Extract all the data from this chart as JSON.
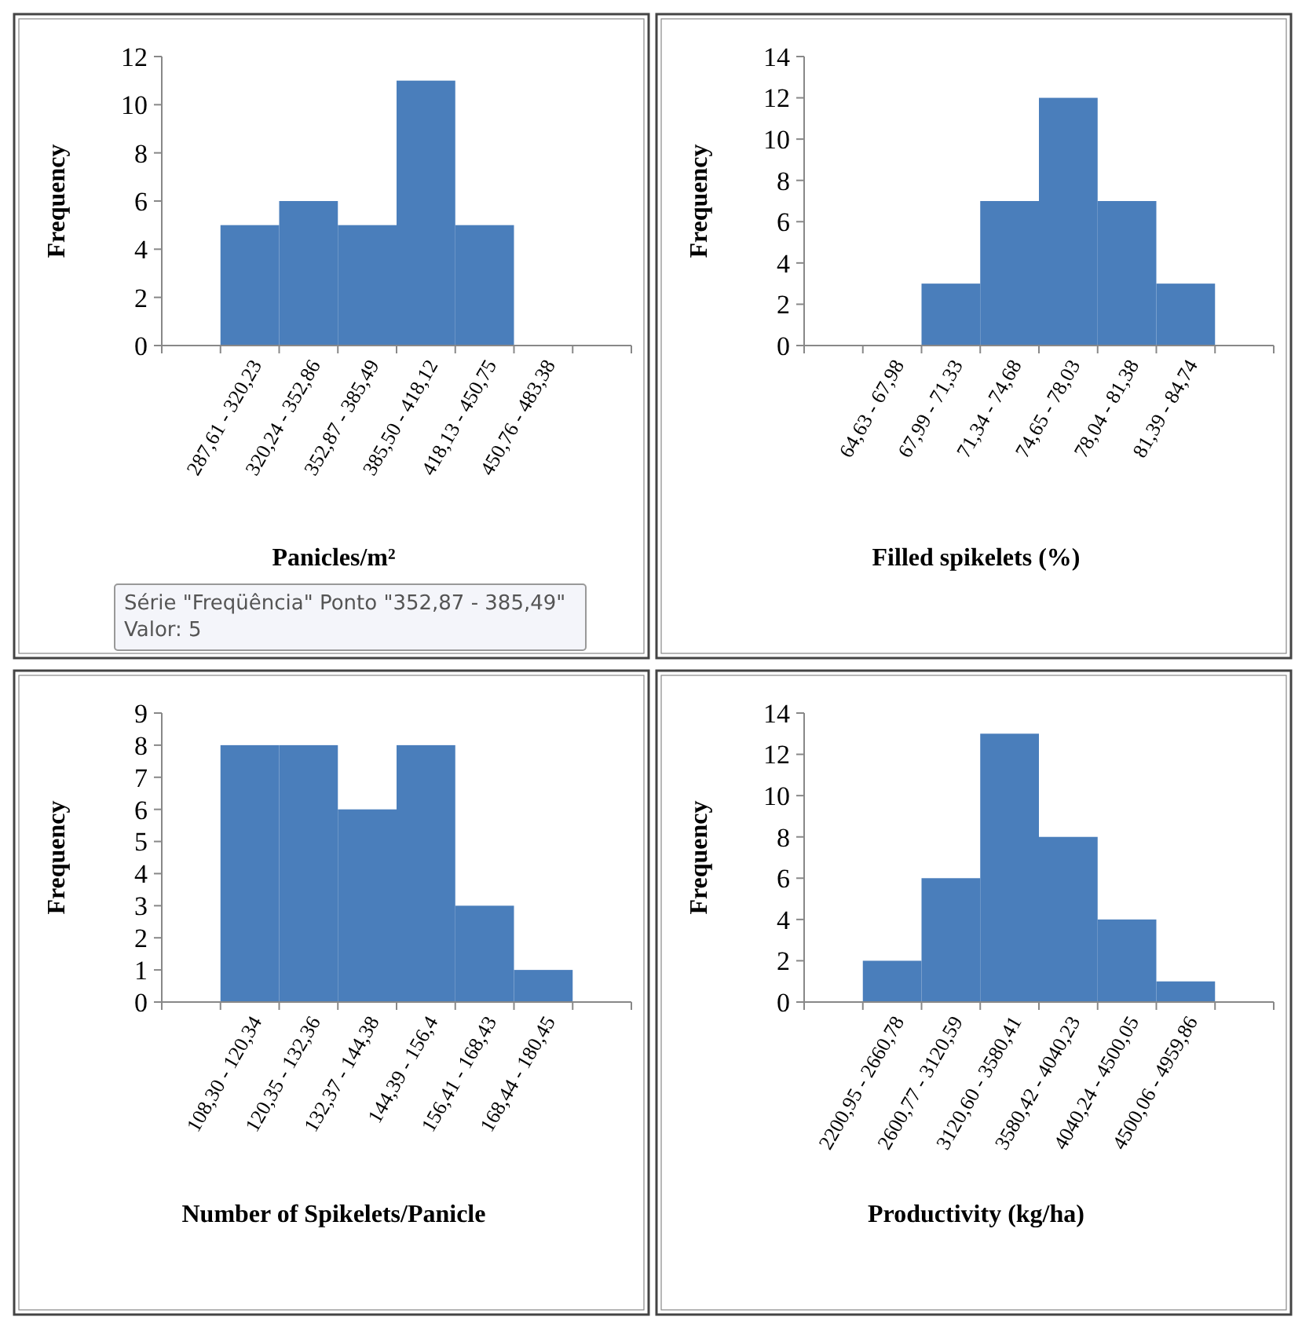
{
  "chart_data": [
    {
      "type": "bar",
      "xlabel": "Panicles/m²",
      "ylabel": "Frequency",
      "categories": [
        null,
        "287,61 - 320,23",
        "320,24 - 352,86",
        "352,87 - 385,49",
        "385,50 - 418,12",
        "418,13 - 450,75",
        "450,76 - 483,38",
        null
      ],
      "values": [
        null,
        5,
        6,
        5,
        11,
        5,
        0,
        null
      ],
      "color": "#4a7ebb",
      "ylim": [
        0,
        12
      ],
      "yticks": [
        0,
        2,
        4,
        6,
        8,
        10,
        12
      ],
      "annotations": [
        "Série \"Freqüência\" Ponto \"352,87 - 385,49\"\nValor: 5"
      ]
    },
    {
      "type": "bar",
      "xlabel": "Filled spikelets (%)",
      "ylabel": "Frequency",
      "categories": [
        null,
        "64,63 - 67,98",
        "67,99 - 71,33",
        "71,34 - 74,68",
        "74,65 - 78,03",
        "78,04 - 81,38",
        "81,39 - 84,74",
        null
      ],
      "values": [
        null,
        null,
        3,
        7,
        12,
        7,
        3,
        null
      ],
      "color": "#4a7ebb",
      "ylim": [
        0,
        14
      ],
      "yticks": [
        0,
        2,
        4,
        6,
        8,
        10,
        12,
        14
      ]
    },
    {
      "type": "bar",
      "xlabel": "Number of Spikelets/Panicle",
      "ylabel": "Frequency",
      "categories": [
        null,
        "108,30 - 120,34",
        "120,35 - 132,36",
        "132,37 - 144,38",
        "144,39 - 156,4",
        "156,41 - 168,43",
        "168,44 - 180,45",
        null
      ],
      "values": [
        null,
        8,
        8,
        6,
        8,
        3,
        1,
        null
      ],
      "color": "#4a7ebb",
      "ylim": [
        0,
        9
      ],
      "yticks": [
        0,
        1,
        2,
        3,
        4,
        5,
        6,
        7,
        8,
        9
      ]
    },
    {
      "type": "bar",
      "xlabel": "Productivity (kg/ha)",
      "ylabel": "Frequency",
      "categories": [
        null,
        "2200,95 - 2660,78",
        "2600,77 - 3120,59",
        "3120,60 - 3580,41",
        "3580,42 - 4040,23",
        "4040,24 - 4500,05",
        "4500,06 - 4959,86",
        null
      ],
      "values": [
        null,
        2,
        6,
        13,
        8,
        4,
        1,
        null
      ],
      "color": "#4a7ebb",
      "ylim": [
        0,
        14
      ],
      "yticks": [
        0,
        2,
        4,
        6,
        8,
        10,
        12,
        14
      ]
    }
  ]
}
